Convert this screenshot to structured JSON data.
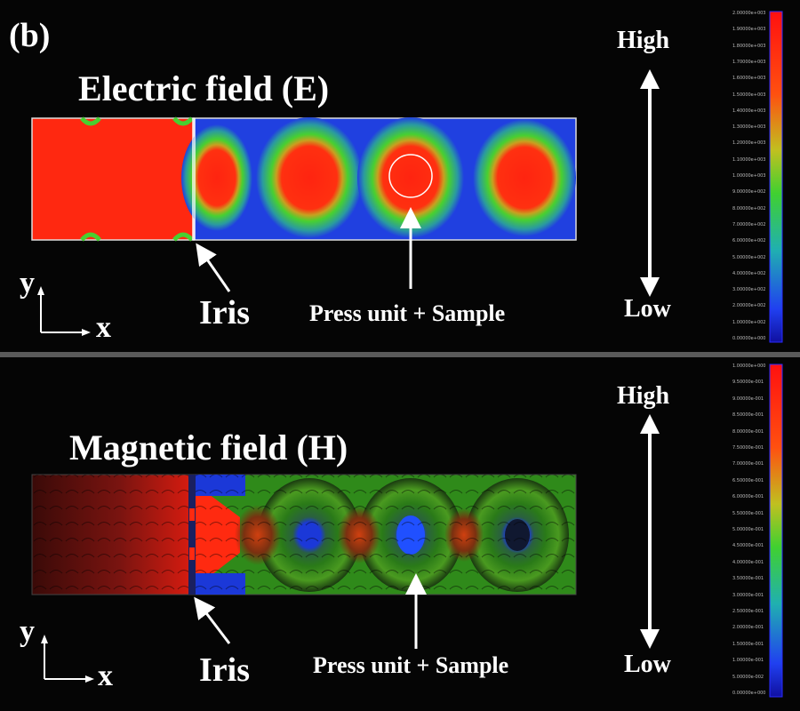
{
  "panel_label": "(b)",
  "electric": {
    "title": "Electric field (E)",
    "iris_label": "Iris",
    "sample_label": "Press unit + Sample",
    "high_label": "High",
    "low_label": "Low",
    "axis_y": "y",
    "axis_x": "x",
    "colorbar_ticks": [
      "2.00000e+003",
      "1.90000e+003",
      "1.80000e+003",
      "1.70000e+003",
      "1.60000e+003",
      "1.50000e+003",
      "1.40000e+003",
      "1.30000e+003",
      "1.20000e+003",
      "1.10000e+003",
      "1.00000e+003",
      "9.00000e+002",
      "8.00000e+002",
      "7.00000e+002",
      "6.00000e+002",
      "5.00000e+002",
      "4.00000e+002",
      "3.00000e+002",
      "2.00000e+002",
      "1.00000e+002",
      "0.00000e+000"
    ]
  },
  "magnetic": {
    "title": "Magnetic field (H)",
    "iris_label": "Iris",
    "sample_label": "Press unit + Sample",
    "high_label": "High",
    "low_label": "Low",
    "axis_y": "y",
    "axis_x": "x",
    "colorbar_ticks": [
      "1.00000e+000",
      "9.50000e-001",
      "9.00000e-001",
      "8.50000e-001",
      "8.00000e-001",
      "7.50000e-001",
      "7.00000e-001",
      "6.50000e-001",
      "6.00000e-001",
      "5.50000e-001",
      "5.00000e-001",
      "4.50000e-001",
      "4.00000e-001",
      "3.50000e-001",
      "3.00000e-001",
      "2.50000e-001",
      "2.00000e-001",
      "1.50000e-001",
      "1.00000e-001",
      "5.00000e-002",
      "0.00000e+000"
    ]
  },
  "colors": {
    "high": "#ff2a10",
    "mid": "#3fd42a",
    "low": "#1f3ee0",
    "background": "#050505"
  }
}
